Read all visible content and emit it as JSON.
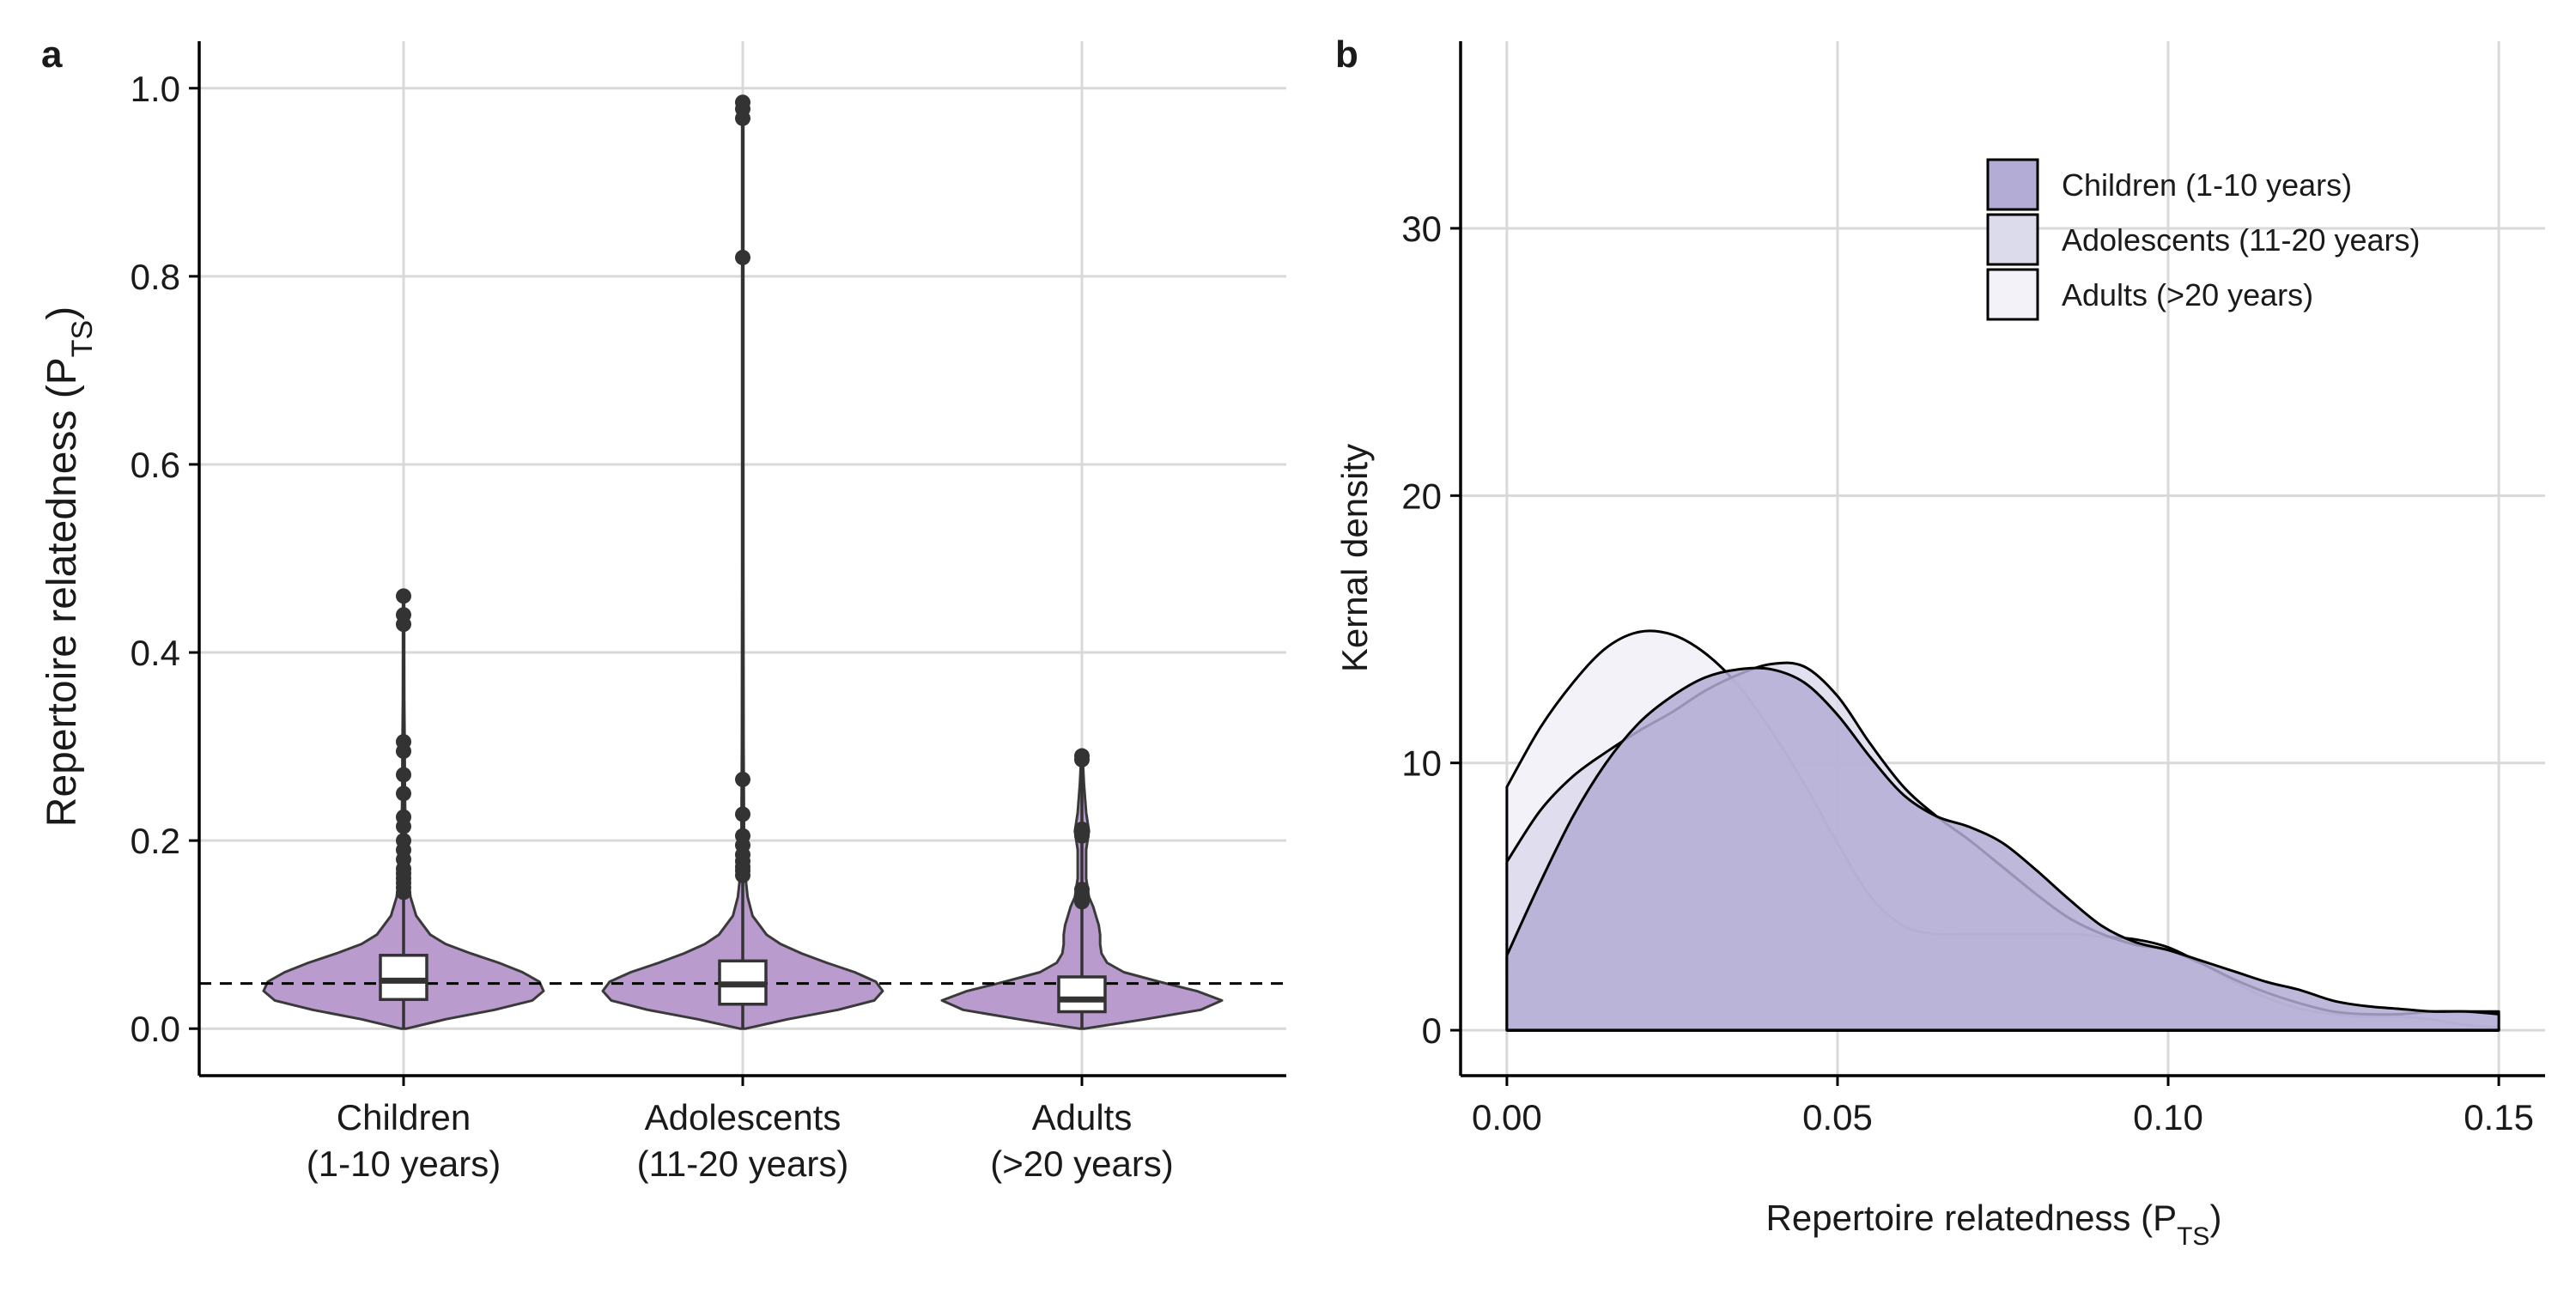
{
  "panel_labels": {
    "a": "a",
    "b": "b"
  },
  "chart_data": [
    {
      "type": "violin",
      "panel": "a",
      "ylabel": "Repertoire relatedness (P",
      "ylabel_sub": "TS",
      "ylabel_close": ")",
      "ylim": [
        -0.05,
        1.05
      ],
      "yticks": [
        0.0,
        0.2,
        0.4,
        0.6,
        0.8,
        1.0
      ],
      "ytick_labels": [
        "0.0",
        "0.2",
        "0.4",
        "0.6",
        "0.8",
        "1.0"
      ],
      "categories": [
        {
          "line1": "Children",
          "line2": "(1-10 years)"
        },
        {
          "line1": "Adolescents",
          "line2": "(11-20 years)"
        },
        {
          "line1": "Adults",
          "line2": "(>20 years)"
        }
      ],
      "reference_line": 0.048,
      "grid": true,
      "fill_color": "#b99ccd",
      "groups": [
        {
          "box": {
            "q1": 0.031,
            "median": 0.051,
            "q3": 0.078,
            "whisker_low": 0.0,
            "whisker_high": 0.142
          },
          "range": [
            0.0,
            0.46
          ],
          "outliers": [
            0.46,
            0.44,
            0.43,
            0.305,
            0.295,
            0.27,
            0.25,
            0.225,
            0.215,
            0.2,
            0.19,
            0.18,
            0.17,
            0.165,
            0.16,
            0.155,
            0.15,
            0.145
          ],
          "profile": [
            [
              0.0,
              0.02
            ],
            [
              0.01,
              0.3
            ],
            [
              0.02,
              0.65
            ],
            [
              0.03,
              0.92
            ],
            [
              0.04,
              1.0
            ],
            [
              0.05,
              0.97
            ],
            [
              0.06,
              0.85
            ],
            [
              0.07,
              0.68
            ],
            [
              0.08,
              0.48
            ],
            [
              0.09,
              0.3
            ],
            [
              0.1,
              0.19
            ],
            [
              0.12,
              0.09
            ],
            [
              0.14,
              0.05
            ],
            [
              0.16,
              0.03
            ],
            [
              0.2,
              0.015
            ],
            [
              0.25,
              0.01
            ],
            [
              0.3,
              0.008
            ],
            [
              0.35,
              0.005
            ],
            [
              0.4,
              0.004
            ],
            [
              0.46,
              0.002
            ]
          ]
        },
        {
          "box": {
            "q1": 0.026,
            "median": 0.047,
            "q3": 0.072,
            "whisker_low": 0.0,
            "whisker_high": 0.138
          },
          "range": [
            0.0,
            0.985
          ],
          "outliers": [
            0.985,
            0.978,
            0.968,
            0.82,
            0.265,
            0.228,
            0.205,
            0.195,
            0.185,
            0.178,
            0.172,
            0.168,
            0.163
          ],
          "profile": [
            [
              0.0,
              0.02
            ],
            [
              0.01,
              0.32
            ],
            [
              0.02,
              0.68
            ],
            [
              0.03,
              0.94
            ],
            [
              0.04,
              1.0
            ],
            [
              0.05,
              0.95
            ],
            [
              0.06,
              0.8
            ],
            [
              0.07,
              0.6
            ],
            [
              0.08,
              0.42
            ],
            [
              0.09,
              0.27
            ],
            [
              0.1,
              0.17
            ],
            [
              0.12,
              0.07
            ],
            [
              0.14,
              0.035
            ],
            [
              0.16,
              0.02
            ],
            [
              0.2,
              0.01
            ],
            [
              0.3,
              0.006
            ],
            [
              0.5,
              0.004
            ],
            [
              0.8,
              0.003
            ],
            [
              0.985,
              0.002
            ]
          ]
        },
        {
          "box": {
            "q1": 0.018,
            "median": 0.031,
            "q3": 0.055,
            "whisker_low": 0.0,
            "whisker_high": 0.103
          },
          "range": [
            0.0,
            0.29
          ],
          "outliers": [
            0.29,
            0.286,
            0.212,
            0.205,
            0.148,
            0.141,
            0.135
          ],
          "profile": [
            [
              0.0,
              0.02
            ],
            [
              0.01,
              0.45
            ],
            [
              0.02,
              0.85
            ],
            [
              0.03,
              1.0
            ],
            [
              0.04,
              0.82
            ],
            [
              0.05,
              0.55
            ],
            [
              0.06,
              0.3
            ],
            [
              0.07,
              0.18
            ],
            [
              0.08,
              0.14
            ],
            [
              0.09,
              0.13
            ],
            [
              0.1,
              0.13
            ],
            [
              0.11,
              0.12
            ],
            [
              0.12,
              0.1
            ],
            [
              0.13,
              0.08
            ],
            [
              0.14,
              0.05
            ],
            [
              0.16,
              0.03
            ],
            [
              0.19,
              0.03
            ],
            [
              0.21,
              0.05
            ],
            [
              0.23,
              0.03
            ],
            [
              0.26,
              0.015
            ],
            [
              0.29,
              0.005
            ]
          ]
        }
      ]
    },
    {
      "type": "area",
      "panel": "b",
      "xlabel": "Repertoire relatedness (P",
      "xlabel_sub": "TS",
      "xlabel_close": ")",
      "ylabel": "Kernal density",
      "xlim": [
        -0.007,
        0.157
      ],
      "ylim": [
        -1.7,
        37
      ],
      "xticks": [
        0.0,
        0.05,
        0.1,
        0.15
      ],
      "xtick_labels": [
        "0.00",
        "0.05",
        "0.10",
        "0.15"
      ],
      "yticks": [
        0,
        10,
        20,
        30
      ],
      "ytick_labels": [
        "0",
        "10",
        "20",
        "30"
      ],
      "grid": true,
      "legend_position": "top-right",
      "series": [
        {
          "name": "Children (1-10 years)",
          "color": "#b3add5",
          "stroke": "#000000",
          "x": [
            0.0,
            0.005,
            0.01,
            0.015,
            0.02,
            0.025,
            0.03,
            0.035,
            0.04,
            0.045,
            0.05,
            0.055,
            0.06,
            0.065,
            0.07,
            0.075,
            0.08,
            0.085,
            0.09,
            0.095,
            0.1,
            0.105,
            0.11,
            0.115,
            0.12,
            0.125,
            0.13,
            0.135,
            0.14,
            0.145,
            0.15
          ],
          "y": [
            2.8,
            5.5,
            8.0,
            10.0,
            11.5,
            12.5,
            13.2,
            13.5,
            13.5,
            13.0,
            11.8,
            10.2,
            8.8,
            8.0,
            7.6,
            7.0,
            6.0,
            4.9,
            3.9,
            3.3,
            3.0,
            2.6,
            2.2,
            1.8,
            1.5,
            1.1,
            0.9,
            0.8,
            0.7,
            0.7,
            0.6
          ]
        },
        {
          "name": "Adolescents (11-20 years)",
          "color": "#dcdbec",
          "stroke": "#000000",
          "x": [
            0.0,
            0.005,
            0.01,
            0.015,
            0.02,
            0.025,
            0.03,
            0.035,
            0.04,
            0.045,
            0.05,
            0.055,
            0.06,
            0.065,
            0.07,
            0.075,
            0.08,
            0.085,
            0.09,
            0.095,
            0.1,
            0.105,
            0.11,
            0.115,
            0.12,
            0.125,
            0.13,
            0.135,
            0.14,
            0.145,
            0.15
          ],
          "y": [
            6.3,
            8.2,
            9.5,
            10.4,
            11.2,
            11.9,
            12.7,
            13.3,
            13.7,
            13.6,
            12.5,
            10.7,
            9.1,
            8.0,
            7.1,
            6.1,
            5.1,
            4.2,
            3.6,
            3.2,
            3.0,
            2.5,
            1.9,
            1.4,
            1.0,
            0.7,
            0.6,
            0.6,
            0.7,
            0.7,
            0.7
          ]
        },
        {
          "name": "Adults (>20 years)",
          "color": "#f3f2f9",
          "stroke": "#000000",
          "x": [
            0.0,
            0.005,
            0.01,
            0.015,
            0.02,
            0.025,
            0.03,
            0.035,
            0.04,
            0.045,
            0.05,
            0.055,
            0.06,
            0.065,
            0.07,
            0.075,
            0.08,
            0.085,
            0.09,
            0.095,
            0.1,
            0.105,
            0.11,
            0.115,
            0.12,
            0.125,
            0.13,
            0.135,
            0.14,
            0.145,
            0.15
          ],
          "y": [
            9.1,
            11.3,
            13.0,
            14.3,
            14.9,
            14.8,
            14.1,
            12.9,
            11.2,
            9.2,
            7.0,
            5.0,
            3.9,
            3.6,
            3.6,
            3.6,
            3.6,
            3.6,
            3.5,
            3.4,
            3.1,
            2.5,
            1.8,
            1.2,
            0.8,
            0.6,
            0.5,
            0.5,
            0.4,
            0.2,
            0.1
          ]
        }
      ]
    }
  ]
}
